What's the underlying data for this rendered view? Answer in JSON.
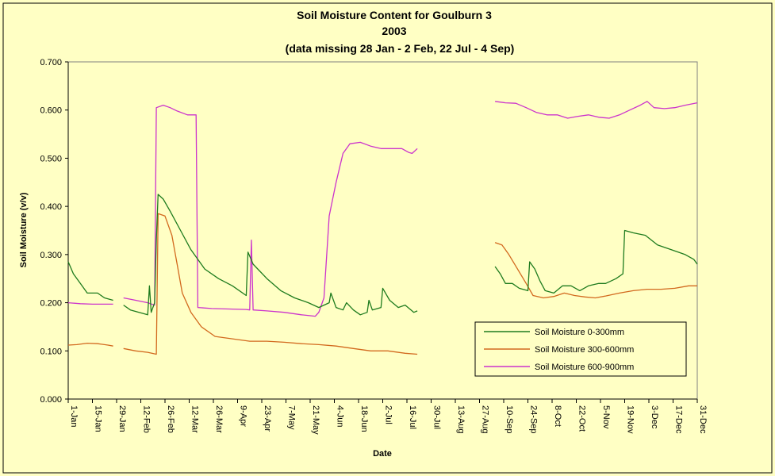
{
  "chart_data": {
    "type": "line",
    "title": "Soil Moisture Content for Goulburn 3",
    "subtitle": "2003",
    "subtitle2": "(data missing 28 Jan - 2 Feb, 22 Jul - 4 Sep)",
    "xlabel": "Date",
    "ylabel": "Soil Moisture (v/v)",
    "ylim": [
      0,
      0.7
    ],
    "yticks": [
      "0.000",
      "0.100",
      "0.200",
      "0.300",
      "0.400",
      "0.500",
      "0.600",
      "0.700"
    ],
    "xlim_day": [
      1,
      365
    ],
    "xticks": [
      "1-Jan",
      "15-Jan",
      "29-Jan",
      "12-Feb",
      "26-Feb",
      "12-Mar",
      "26-Mar",
      "9-Apr",
      "23-Apr",
      "7-May",
      "21-May",
      "4-Jun",
      "18-Jun",
      "2-Jul",
      "16-Jul",
      "30-Jul",
      "13-Aug",
      "27-Aug",
      "10-Sep",
      "24-Sep",
      "8-Oct",
      "22-Oct",
      "5-Nov",
      "19-Nov",
      "3-Dec",
      "17-Dec",
      "31-Dec"
    ],
    "grid": false,
    "legend_position": "lower-right",
    "background": "#ffffc4",
    "series": [
      {
        "name": "Soil Moisture 0-300mm",
        "color": "#1e7b1e",
        "segments": [
          [
            [
              1,
              0.285
            ],
            [
              4,
              0.26
            ],
            [
              8,
              0.24
            ],
            [
              12,
              0.22
            ],
            [
              18,
              0.22
            ],
            [
              22,
              0.21
            ],
            [
              27,
              0.205
            ]
          ],
          [
            [
              33,
              0.195
            ],
            [
              37,
              0.185
            ],
            [
              42,
              0.18
            ],
            [
              47,
              0.175
            ],
            [
              48,
              0.235
            ],
            [
              49,
              0.18
            ],
            [
              51,
              0.2
            ],
            [
              52,
              0.33
            ],
            [
              53,
              0.425
            ],
            [
              56,
              0.415
            ],
            [
              60,
              0.39
            ],
            [
              66,
              0.35
            ],
            [
              72,
              0.31
            ],
            [
              80,
              0.27
            ],
            [
              88,
              0.25
            ],
            [
              96,
              0.235
            ],
            [
              104,
              0.215
            ],
            [
              105,
              0.305
            ],
            [
              108,
              0.28
            ],
            [
              116,
              0.25
            ],
            [
              124,
              0.225
            ],
            [
              132,
              0.21
            ],
            [
              140,
              0.2
            ],
            [
              146,
              0.19
            ],
            [
              152,
              0.2
            ],
            [
              153,
              0.22
            ],
            [
              156,
              0.19
            ],
            [
              160,
              0.185
            ],
            [
              162,
              0.2
            ],
            [
              166,
              0.185
            ],
            [
              170,
              0.175
            ],
            [
              174,
              0.18
            ],
            [
              175,
              0.205
            ],
            [
              177,
              0.185
            ],
            [
              182,
              0.19
            ],
            [
              183,
              0.23
            ],
            [
              187,
              0.205
            ],
            [
              192,
              0.19
            ],
            [
              196,
              0.195
            ],
            [
              201,
              0.18
            ],
            [
              203,
              0.183
            ]
          ]
        ],
        "tail": [
          [
            248,
            0.275
          ],
          [
            251,
            0.26
          ],
          [
            254,
            0.24
          ],
          [
            258,
            0.24
          ],
          [
            262,
            0.23
          ],
          [
            267,
            0.225
          ],
          [
            268,
            0.285
          ],
          [
            271,
            0.27
          ],
          [
            274,
            0.245
          ],
          [
            277,
            0.225
          ],
          [
            282,
            0.22
          ],
          [
            287,
            0.235
          ],
          [
            292,
            0.235
          ],
          [
            297,
            0.225
          ],
          [
            302,
            0.235
          ],
          [
            308,
            0.24
          ],
          [
            312,
            0.24
          ],
          [
            318,
            0.25
          ],
          [
            322,
            0.26
          ],
          [
            323,
            0.35
          ],
          [
            328,
            0.345
          ],
          [
            335,
            0.34
          ],
          [
            342,
            0.32
          ],
          [
            350,
            0.31
          ],
          [
            358,
            0.3
          ],
          [
            363,
            0.29
          ],
          [
            365,
            0.28
          ]
        ]
      },
      {
        "name": "Soil Moisture 300-600mm",
        "color": "#d2691e",
        "segments": [
          [
            [
              1,
              0.112
            ],
            [
              6,
              0.113
            ],
            [
              12,
              0.116
            ],
            [
              18,
              0.115
            ],
            [
              24,
              0.112
            ],
            [
              27,
              0.11
            ]
          ],
          [
            [
              33,
              0.105
            ],
            [
              40,
              0.1
            ],
            [
              47,
              0.097
            ],
            [
              52,
              0.093
            ],
            [
              53,
              0.385
            ],
            [
              57,
              0.38
            ],
            [
              61,
              0.34
            ],
            [
              64,
              0.28
            ],
            [
              67,
              0.22
            ],
            [
              72,
              0.18
            ],
            [
              78,
              0.15
            ],
            [
              86,
              0.13
            ],
            [
              96,
              0.125
            ],
            [
              106,
              0.12
            ],
            [
              116,
              0.12
            ],
            [
              126,
              0.118
            ],
            [
              136,
              0.115
            ],
            [
              146,
              0.113
            ],
            [
              156,
              0.11
            ],
            [
              166,
              0.105
            ],
            [
              176,
              0.1
            ],
            [
              186,
              0.1
            ],
            [
              196,
              0.095
            ],
            [
              203,
              0.093
            ]
          ]
        ],
        "tail": [
          [
            248,
            0.325
          ],
          [
            252,
            0.32
          ],
          [
            256,
            0.3
          ],
          [
            261,
            0.27
          ],
          [
            266,
            0.24
          ],
          [
            270,
            0.215
          ],
          [
            276,
            0.21
          ],
          [
            282,
            0.213
          ],
          [
            288,
            0.22
          ],
          [
            294,
            0.215
          ],
          [
            300,
            0.212
          ],
          [
            306,
            0.21
          ],
          [
            312,
            0.214
          ],
          [
            320,
            0.22
          ],
          [
            328,
            0.225
          ],
          [
            336,
            0.228
          ],
          [
            344,
            0.228
          ],
          [
            352,
            0.23
          ],
          [
            360,
            0.235
          ],
          [
            365,
            0.235
          ]
        ]
      },
      {
        "name": "Soil Moisture 600-900mm",
        "color": "#cc33cc",
        "segments": [
          [
            [
              1,
              0.2
            ],
            [
              8,
              0.198
            ],
            [
              15,
              0.197
            ],
            [
              22,
              0.197
            ],
            [
              27,
              0.197
            ]
          ],
          [
            [
              33,
              0.21
            ],
            [
              40,
              0.205
            ],
            [
              47,
              0.2
            ],
            [
              51,
              0.195
            ],
            [
              52,
              0.605
            ],
            [
              56,
              0.61
            ],
            [
              60,
              0.605
            ],
            [
              64,
              0.598
            ],
            [
              70,
              0.59
            ],
            [
              75,
              0.59
            ],
            [
              76,
              0.19
            ],
            [
              84,
              0.188
            ],
            [
              94,
              0.187
            ],
            [
              104,
              0.186
            ],
            [
              106,
              0.185
            ],
            [
              107,
              0.33
            ],
            [
              108,
              0.185
            ],
            [
              116,
              0.183
            ],
            [
              126,
              0.18
            ],
            [
              136,
              0.175
            ],
            [
              144,
              0.172
            ],
            [
              146,
              0.18
            ],
            [
              149,
              0.21
            ],
            [
              152,
              0.38
            ],
            [
              156,
              0.45
            ],
            [
              160,
              0.51
            ],
            [
              164,
              0.53
            ],
            [
              170,
              0.533
            ],
            [
              176,
              0.525
            ],
            [
              182,
              0.52
            ],
            [
              188,
              0.52
            ],
            [
              194,
              0.52
            ],
            [
              198,
              0.512
            ],
            [
              200,
              0.51
            ],
            [
              203,
              0.52
            ]
          ]
        ],
        "tail": [
          [
            248,
            0.618
          ],
          [
            254,
            0.615
          ],
          [
            260,
            0.614
          ],
          [
            266,
            0.605
          ],
          [
            272,
            0.595
          ],
          [
            278,
            0.59
          ],
          [
            284,
            0.59
          ],
          [
            290,
            0.583
          ],
          [
            296,
            0.587
          ],
          [
            302,
            0.59
          ],
          [
            308,
            0.585
          ],
          [
            314,
            0.583
          ],
          [
            320,
            0.59
          ],
          [
            326,
            0.6
          ],
          [
            332,
            0.61
          ],
          [
            336,
            0.618
          ],
          [
            340,
            0.605
          ],
          [
            346,
            0.603
          ],
          [
            352,
            0.605
          ],
          [
            358,
            0.61
          ],
          [
            365,
            0.615
          ]
        ]
      }
    ]
  }
}
